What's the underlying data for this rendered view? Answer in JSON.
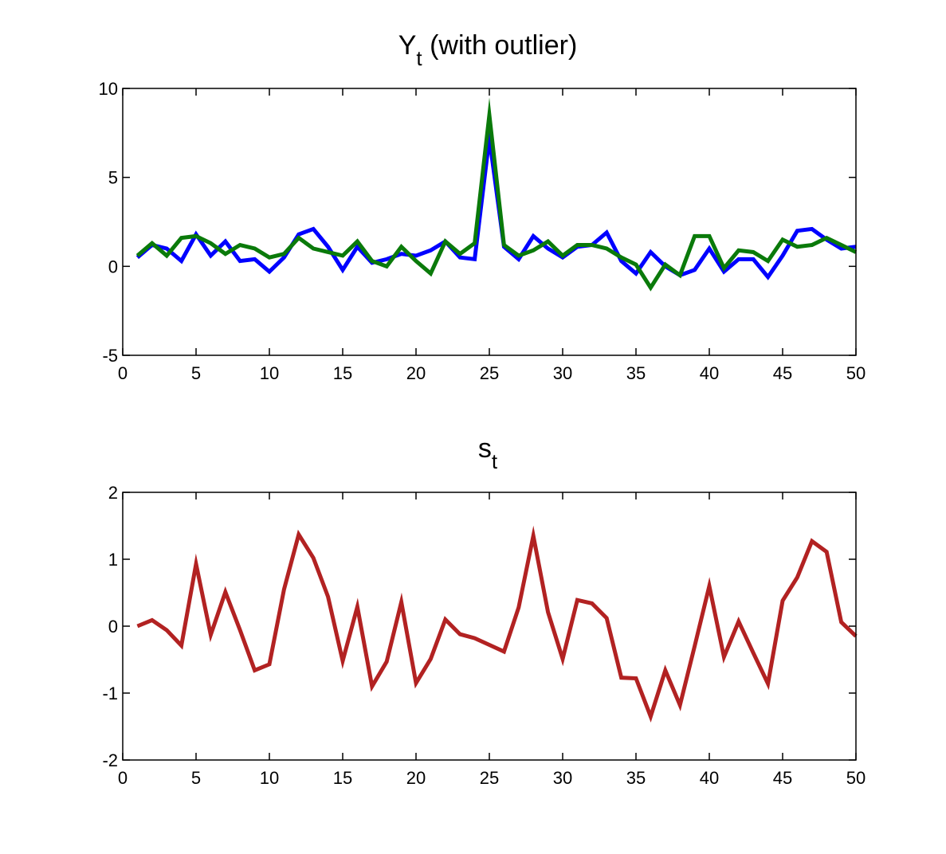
{
  "chart_data": [
    {
      "type": "line",
      "title": "Y",
      "title_subscript": "t",
      "title_suffix": " (with outlier)",
      "xlim": [
        0,
        50
      ],
      "ylim": [
        -5,
        10
      ],
      "xticks": [
        "0",
        "5",
        "10",
        "15",
        "20",
        "25",
        "30",
        "35",
        "40",
        "45",
        "50"
      ],
      "yticks": [
        "-5",
        "0",
        "5",
        "10"
      ],
      "grid": false,
      "x": [
        1,
        2,
        3,
        4,
        5,
        6,
        7,
        8,
        9,
        10,
        11,
        12,
        13,
        14,
        15,
        16,
        17,
        18,
        19,
        20,
        21,
        22,
        23,
        24,
        25,
        26,
        27,
        28,
        29,
        30,
        31,
        32,
        33,
        34,
        35,
        36,
        37,
        38,
        39,
        40,
        41,
        42,
        43,
        44,
        45,
        46,
        47,
        48,
        49,
        50
      ],
      "series": [
        {
          "color": "#0000ff",
          "values": [
            0.5,
            1.2,
            1.0,
            0.3,
            1.8,
            0.6,
            1.4,
            0.3,
            0.4,
            -0.3,
            0.5,
            1.8,
            2.1,
            1.1,
            -0.2,
            1.1,
            0.2,
            0.4,
            0.7,
            0.6,
            0.9,
            1.4,
            0.5,
            0.4,
            7.2,
            1.1,
            0.4,
            1.7,
            1.0,
            0.5,
            1.1,
            1.2,
            1.9,
            0.3,
            -0.4,
            0.8,
            0.0,
            -0.5,
            -0.2,
            1.0,
            -0.3,
            0.4,
            0.4,
            -0.6,
            0.6,
            2.0,
            2.1,
            1.5,
            1.0,
            1.1
          ]
        },
        {
          "color": "#0a7a0a",
          "values": [
            0.6,
            1.3,
            0.6,
            1.6,
            1.7,
            1.3,
            0.7,
            1.2,
            1.0,
            0.5,
            0.7,
            1.6,
            1.0,
            0.8,
            0.6,
            1.4,
            0.3,
            0.0,
            1.1,
            0.3,
            -0.4,
            1.4,
            0.7,
            1.3,
            8.5,
            1.2,
            0.6,
            0.9,
            1.4,
            0.6,
            1.2,
            1.2,
            1.0,
            0.5,
            0.1,
            -1.2,
            0.1,
            -0.5,
            1.7,
            1.7,
            -0.1,
            0.9,
            0.8,
            0.3,
            1.5,
            1.1,
            1.2,
            1.6,
            1.2,
            0.8
          ]
        }
      ]
    },
    {
      "type": "line",
      "title": "s",
      "title_subscript": "t",
      "title_suffix": "",
      "xlim": [
        0,
        50
      ],
      "ylim": [
        -2,
        2
      ],
      "xticks": [
        "0",
        "5",
        "10",
        "15",
        "20",
        "25",
        "30",
        "35",
        "40",
        "45",
        "50"
      ],
      "yticks": [
        "-2",
        "-1",
        "0",
        "1",
        "2"
      ],
      "grid": false,
      "x": [
        1,
        2,
        3,
        4,
        5,
        6,
        7,
        8,
        9,
        10,
        11,
        12,
        13,
        14,
        15,
        16,
        17,
        18,
        19,
        20,
        21,
        22,
        23,
        24,
        25,
        26,
        27,
        28,
        29,
        30,
        31,
        32,
        33,
        34,
        35,
        36,
        37,
        38,
        39,
        40,
        41,
        42,
        43,
        44,
        45,
        46,
        47,
        48,
        49,
        50
      ],
      "series": [
        {
          "color": "#b22222",
          "values": [
            0.0,
            0.09,
            -0.06,
            -0.29,
            0.93,
            -0.13,
            0.51,
            -0.06,
            -0.66,
            -0.57,
            0.55,
            1.37,
            1.02,
            0.44,
            -0.52,
            0.29,
            -0.9,
            -0.53,
            0.36,
            -0.85,
            -0.49,
            0.1,
            -0.12,
            -0.18,
            -0.28,
            -0.38,
            0.28,
            1.35,
            0.21,
            -0.49,
            0.39,
            0.34,
            0.12,
            -0.77,
            -0.78,
            -1.35,
            -0.66,
            -1.18,
            -0.3,
            0.6,
            -0.46,
            0.07,
            -0.4,
            -0.86,
            0.38,
            0.73,
            1.27,
            1.11,
            0.06,
            -0.15
          ]
        }
      ]
    }
  ]
}
